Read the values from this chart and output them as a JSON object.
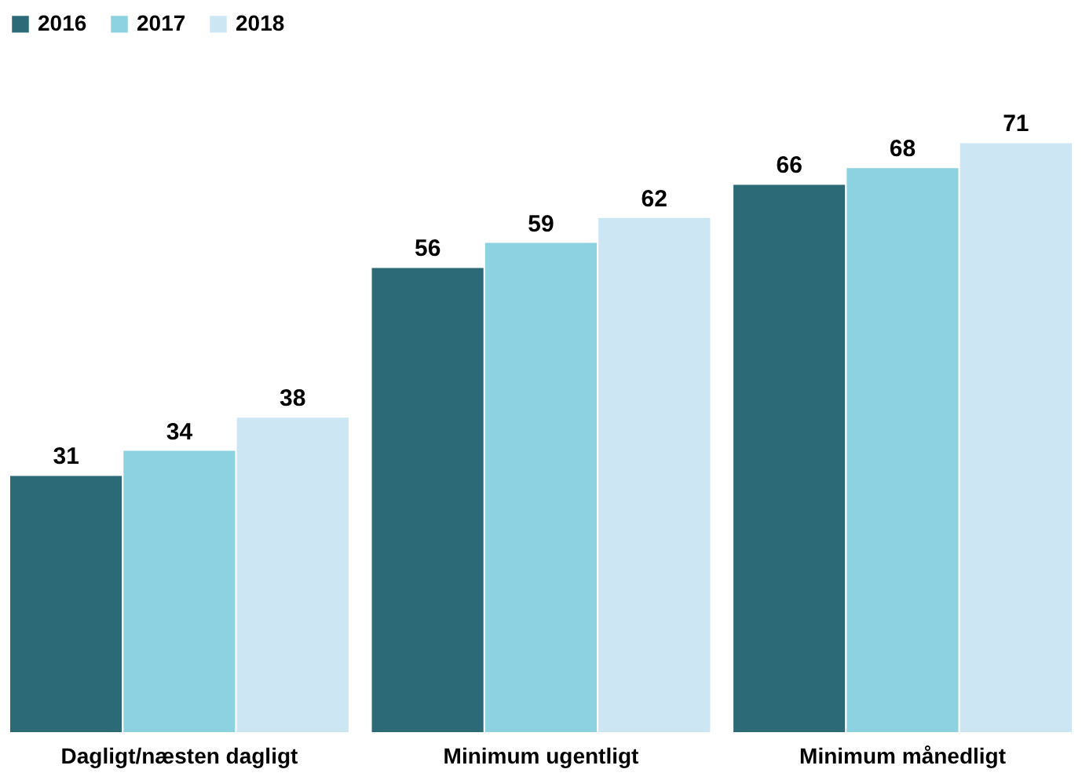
{
  "chart_data": {
    "type": "bar",
    "categories": [
      "Dagligt/næsten dagligt",
      "Minimum ugentligt",
      "Minimum månedligt"
    ],
    "series": [
      {
        "name": "2016",
        "color": "#2c6a78",
        "values": [
          31,
          56,
          66
        ]
      },
      {
        "name": "2017",
        "color": "#8dd2e0",
        "values": [
          34,
          59,
          68
        ]
      },
      {
        "name": "2018",
        "color": "#cde6f4",
        "values": [
          38,
          62,
          71
        ]
      }
    ],
    "data_labels": true,
    "legend": "top",
    "grid": false,
    "tick_labels": "x"
  }
}
